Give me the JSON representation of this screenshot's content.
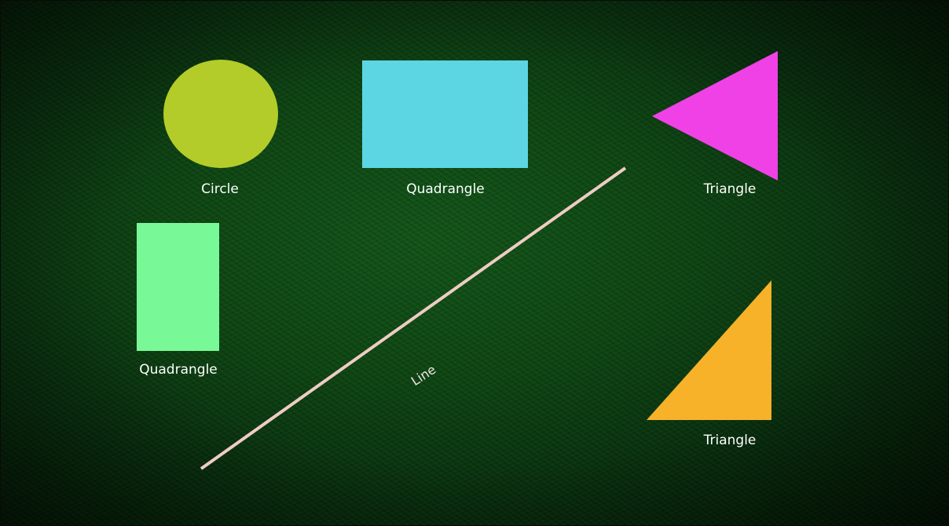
{
  "shapes": {
    "circle": {
      "label": "Circle",
      "color": "#b3cc29"
    },
    "quadrangle_wide": {
      "label": "Quadrangle",
      "color": "#5cd6e2"
    },
    "triangle_pink": {
      "label": "Triangle",
      "color": "#f041e7"
    },
    "quadrangle_tall": {
      "label": "Quadrangle",
      "color": "#79f898"
    },
    "line": {
      "label": "Line",
      "color": "#efccc4"
    },
    "triangle_orange": {
      "label": "Triangle",
      "color": "#f7b22a"
    }
  }
}
